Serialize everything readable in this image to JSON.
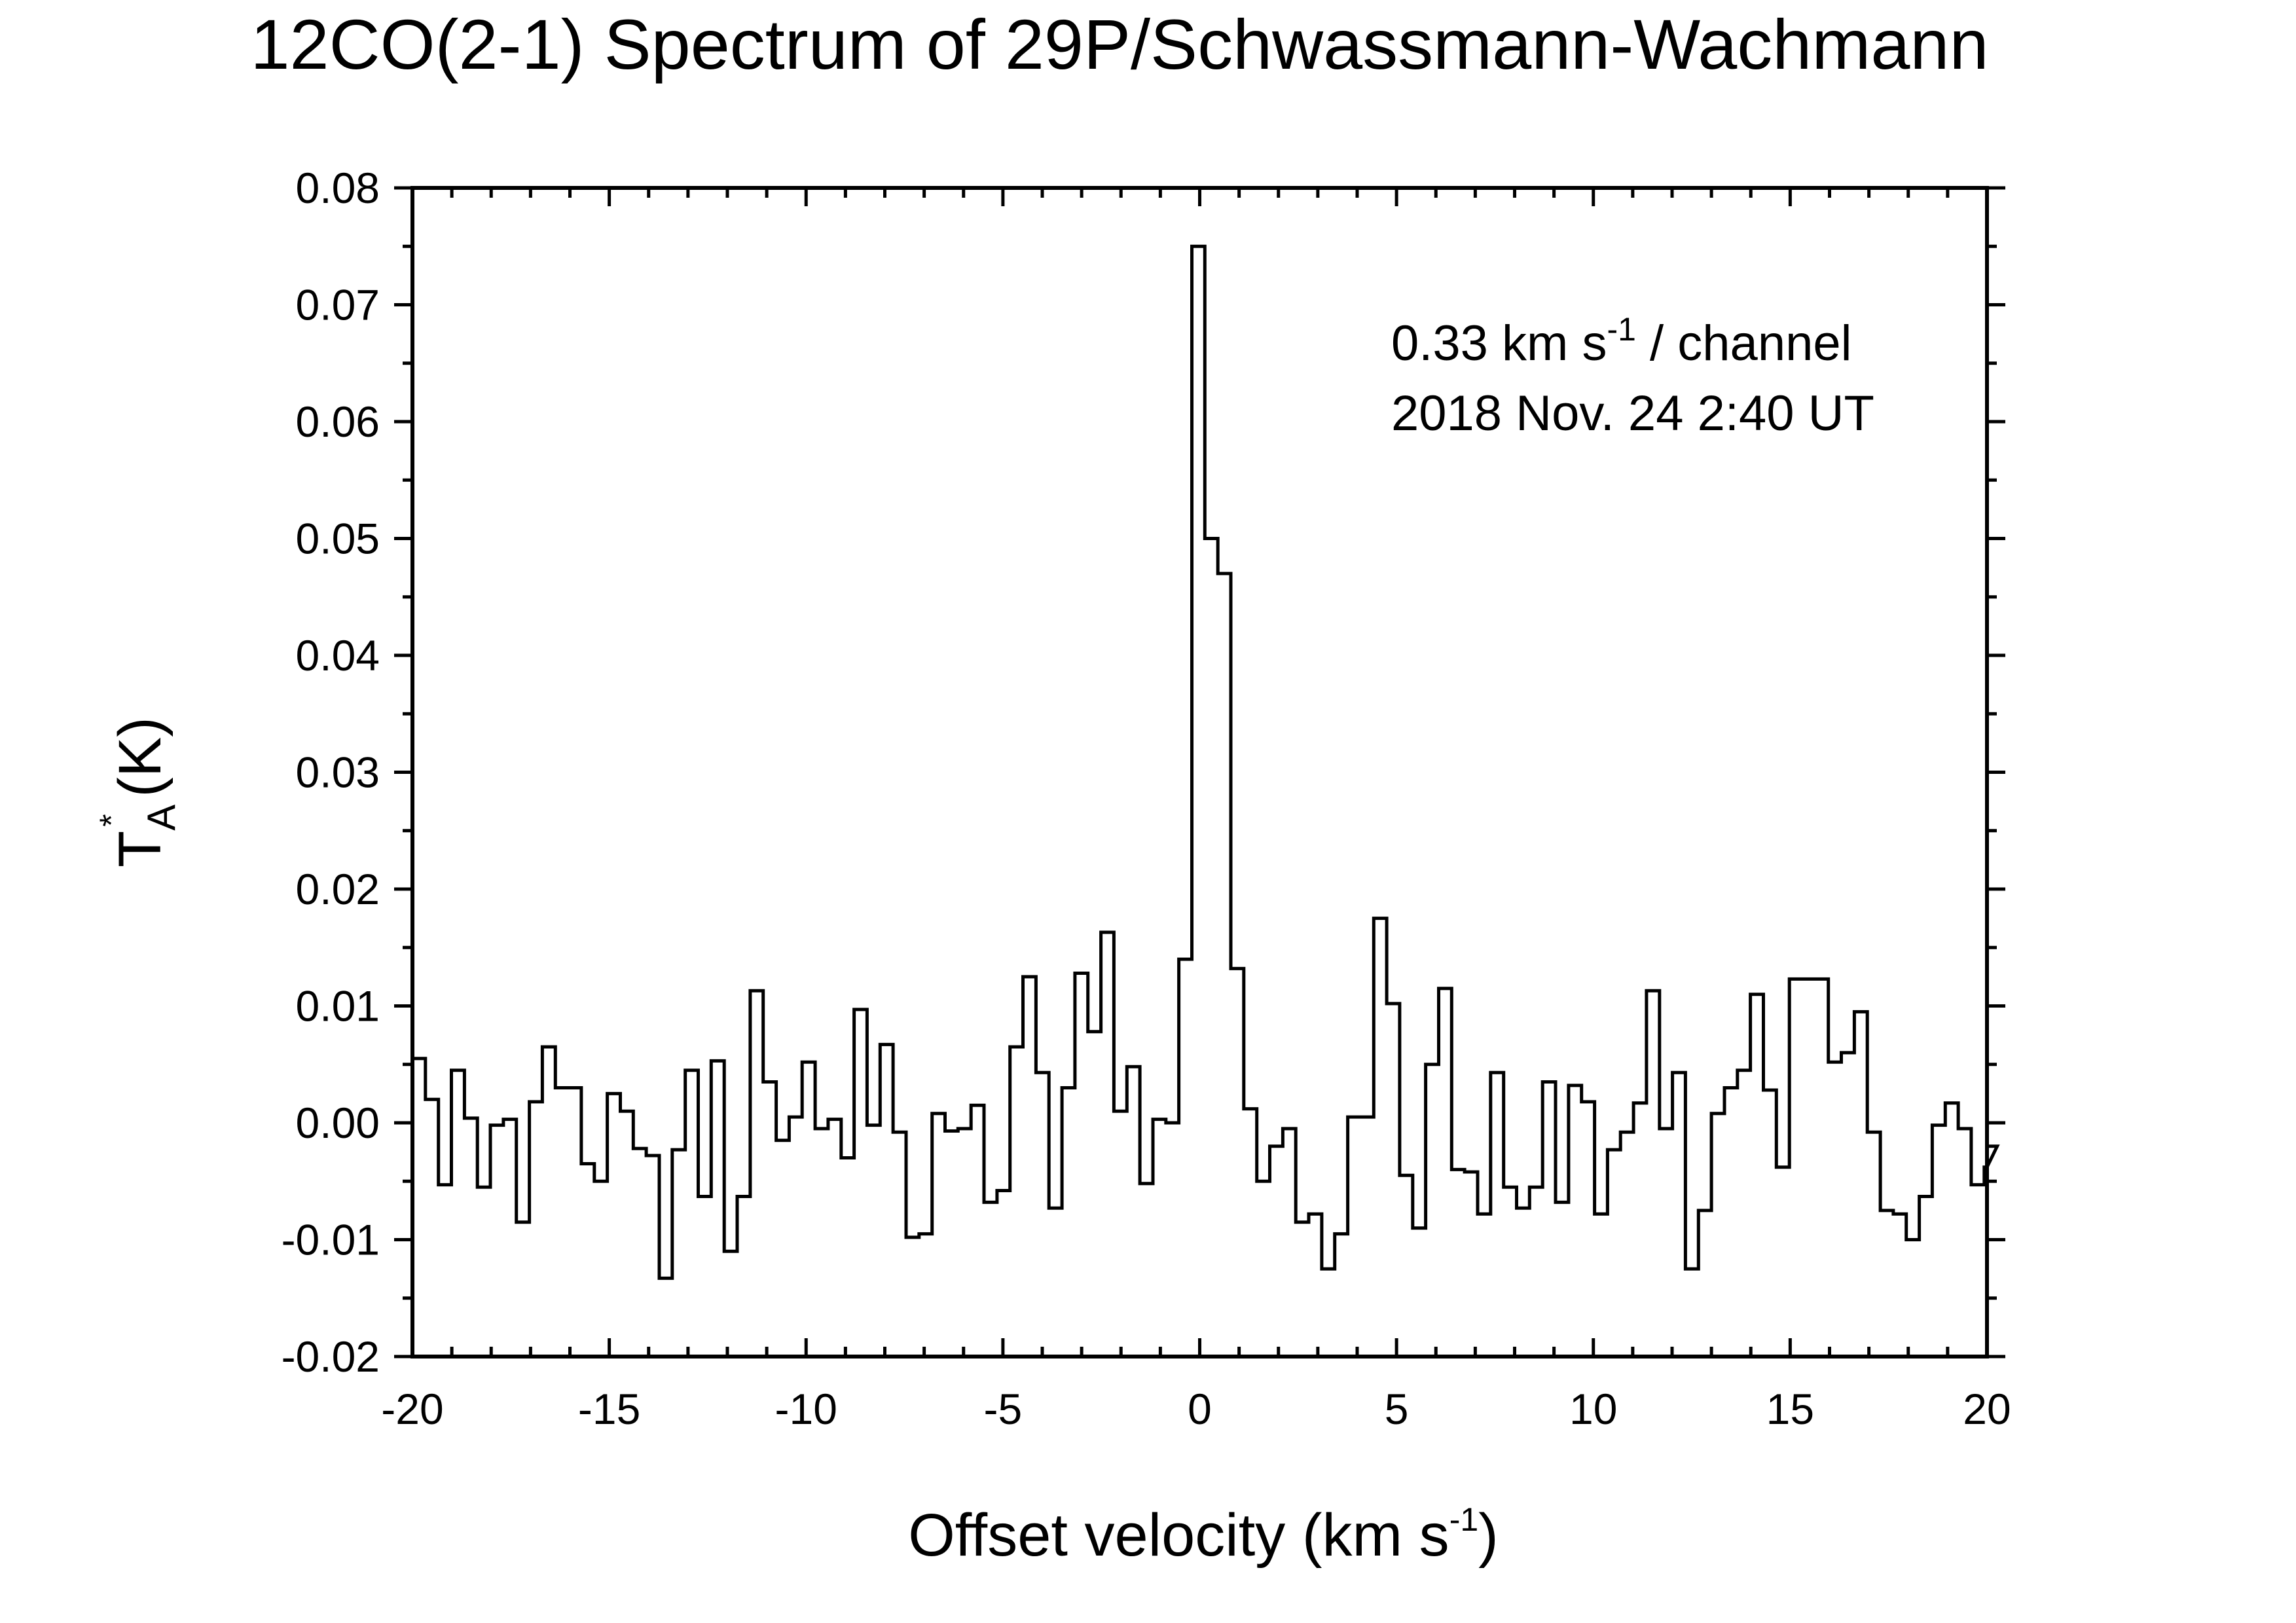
{
  "chart_data": {
    "type": "line",
    "style": "step",
    "title": "12CO(2-1) Spectrum of 29P/Schwassmann-Wachmann",
    "xlabel": {
      "main": "Offset velocity (km s",
      "sup": "-1",
      "tail": ")"
    },
    "ylabel": {
      "main": "T",
      "sub": "A",
      "sup": "*",
      "tail": " (K)"
    },
    "xlim": [
      -20,
      20
    ],
    "ylim": [
      -0.02,
      0.08
    ],
    "xticks": [
      -20,
      -15,
      -10,
      -5,
      0,
      5,
      10,
      15,
      20
    ],
    "xtick_labels": [
      "-20",
      "-15",
      "-10",
      "-5",
      "0",
      "5",
      "10",
      "15",
      "20"
    ],
    "yticks": [
      -0.02,
      -0.01,
      0.0,
      0.01,
      0.02,
      0.03,
      0.04,
      0.05,
      0.06,
      0.07,
      0.08
    ],
    "ytick_labels": [
      "-0.02",
      "-0.01",
      "0.00",
      "0.01",
      "0.02",
      "0.03",
      "0.04",
      "0.05",
      "0.06",
      "0.07",
      "0.08"
    ],
    "annotations": {
      "line1": {
        "pre": "0.33 km s",
        "sup": "-1",
        "post": " / channel"
      },
      "line2": "2018 Nov. 24 2:40 UT"
    },
    "channel_width": 0.33,
    "x_start": -20.0,
    "values": [
      0.0055,
      0.002,
      -0.0053,
      0.0045,
      0.0004,
      -0.0055,
      -0.0002,
      0.0003,
      -0.0085,
      0.0018,
      0.0065,
      0.003,
      0.003,
      -0.0035,
      -0.005,
      0.0025,
      0.001,
      -0.0022,
      -0.0028,
      -0.0133,
      -0.0023,
      0.0045,
      -0.0063,
      0.0053,
      -0.011,
      -0.0063,
      0.0113,
      0.0035,
      -0.0015,
      0.0005,
      0.0052,
      -0.0005,
      0.0003,
      -0.003,
      0.0097,
      -0.0002,
      0.0067,
      -0.0008,
      -0.0098,
      -0.0095,
      0.0008,
      -0.0007,
      -0.0005,
      0.0015,
      -0.0068,
      -0.0058,
      0.0065,
      0.0125,
      0.0043,
      -0.0073,
      0.003,
      0.0128,
      0.0078,
      0.0163,
      0.001,
      0.0048,
      -0.0052,
      0.0003,
      0.0,
      0.014,
      0.075,
      0.05,
      0.047,
      0.0132,
      0.0012,
      -0.005,
      -0.002,
      -0.0005,
      -0.0085,
      -0.0078,
      -0.0125,
      -0.0095,
      0.0005,
      0.0005,
      0.0175,
      0.0102,
      -0.0045,
      -0.009,
      0.005,
      0.0115,
      -0.004,
      -0.0042,
      -0.0078,
      0.0043,
      -0.0055,
      -0.0073,
      -0.0055,
      0.0035,
      -0.0068,
      0.0032,
      0.0018,
      -0.0078,
      -0.0023,
      -0.0008,
      0.0017,
      0.0113,
      -0.0005,
      0.0043,
      -0.0125,
      -0.0075,
      0.0008,
      0.003,
      0.0045,
      0.011,
      0.0028,
      -0.0038,
      0.0123,
      0.0123,
      0.0123,
      0.0052,
      0.006,
      0.0095,
      -0.0008,
      -0.0075,
      -0.0078,
      -0.01,
      -0.0063,
      -0.0002,
      0.0017,
      -0.0005,
      -0.0053,
      -0.0038,
      -0.002
    ]
  }
}
